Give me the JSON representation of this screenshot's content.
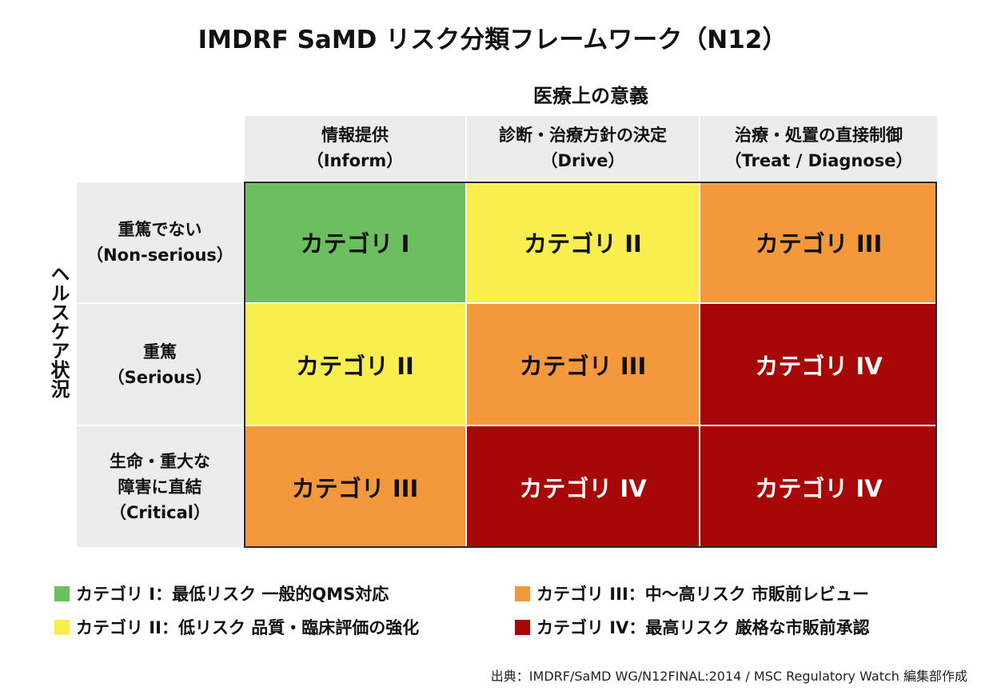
{
  "title": "IMDRF SaMD リスク分類フレームワーク（N12）",
  "x_axis_title": "医療上の意義",
  "y_axis_title": "ヘルスケア状況",
  "columns": [
    {
      "ja": "情報提供",
      "en": "（Inform）"
    },
    {
      "ja": "診断・治療方針の決定",
      "en": "（Drive）"
    },
    {
      "ja": "治療・処置の直接制御",
      "en": "（Treat / Diagnose）"
    }
  ],
  "rows": [
    {
      "lines": [
        "重篤でない",
        "（Non-serious）"
      ]
    },
    {
      "lines": [
        "重篤",
        "（Serious）"
      ]
    },
    {
      "lines": [
        "生命・重大な",
        "障害に直結",
        "（Critical）"
      ]
    }
  ],
  "cells": [
    [
      "カテゴリ I",
      "カテゴリ II",
      "カテゴリ III"
    ],
    [
      "カテゴリ II",
      "カテゴリ III",
      "カテゴリ IV"
    ],
    [
      "カテゴリ III",
      "カテゴリ IV",
      "カテゴリ IV"
    ]
  ],
  "category_colors": {
    "I": "#6cbf5e",
    "II": "#f8ee4e",
    "III": "#f3993c",
    "IV": "#a80707"
  },
  "legend": [
    {
      "level": "I",
      "text": "カテゴリ I：最低リスク 一般的QMS対応"
    },
    {
      "level": "II",
      "text": "カテゴリ II：低リスク 品質・臨床評価の強化"
    },
    {
      "level": "III",
      "text": "カテゴリ III：中〜高リスク 市販前レビュー"
    },
    {
      "level": "IV",
      "text": "カテゴリ IV：最高リスク 厳格な市販前承認"
    }
  ],
  "source": "出典：IMDRF/SaMD WG/N12FINAL:2014 / MSC Regulatory Watch 編集部作成"
}
